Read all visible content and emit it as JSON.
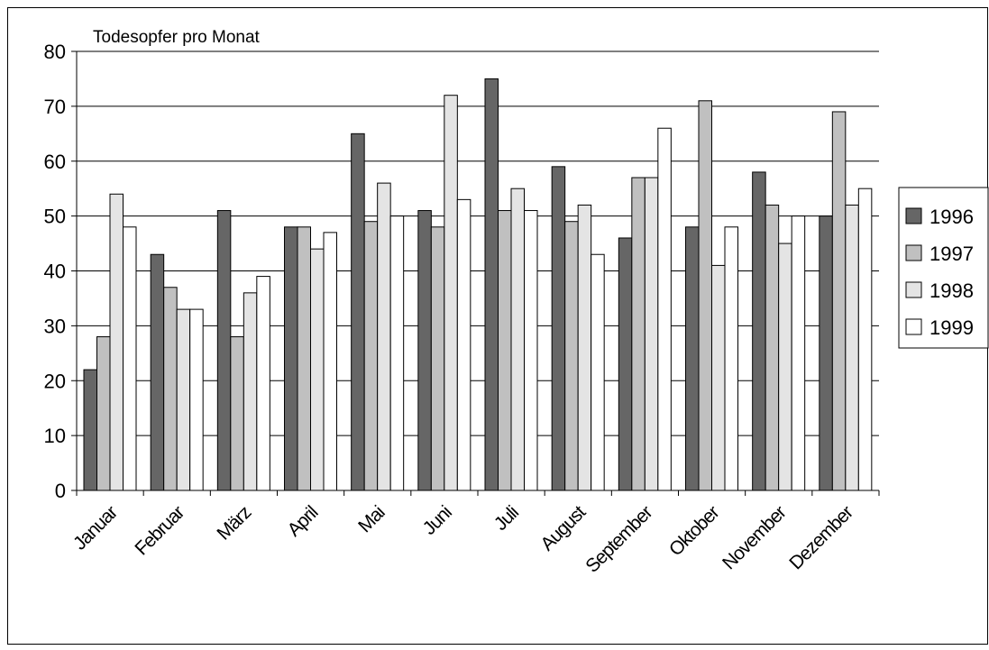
{
  "chart_data": {
    "type": "bar",
    "title": "Todesopfer pro Monat",
    "xlabel": "",
    "ylabel": "",
    "ylim": [
      0,
      80
    ],
    "yticks": [
      0,
      10,
      20,
      30,
      40,
      50,
      60,
      70,
      80
    ],
    "grid": true,
    "legend_position": "right",
    "categories": [
      "Januar",
      "Februar",
      "März",
      "April",
      "Mai",
      "Juni",
      "Juli",
      "August",
      "September",
      "Oktober",
      "November",
      "Dezember"
    ],
    "series": [
      {
        "name": "1996",
        "color": "#666666",
        "values": [
          22,
          43,
          51,
          48,
          65,
          51,
          75,
          59,
          46,
          48,
          58,
          50
        ]
      },
      {
        "name": "1997",
        "color": "#c0c0c0",
        "values": [
          28,
          37,
          28,
          48,
          49,
          48,
          51,
          49,
          57,
          71,
          52,
          69
        ]
      },
      {
        "name": "1998",
        "color": "#e4e4e4",
        "values": [
          54,
          33,
          36,
          44,
          56,
          72,
          55,
          52,
          57,
          41,
          45,
          52
        ]
      },
      {
        "name": "1999",
        "color": "#ffffff",
        "values": [
          48,
          33,
          39,
          47,
          50,
          53,
          51,
          43,
          66,
          48,
          50,
          55
        ]
      }
    ]
  }
}
